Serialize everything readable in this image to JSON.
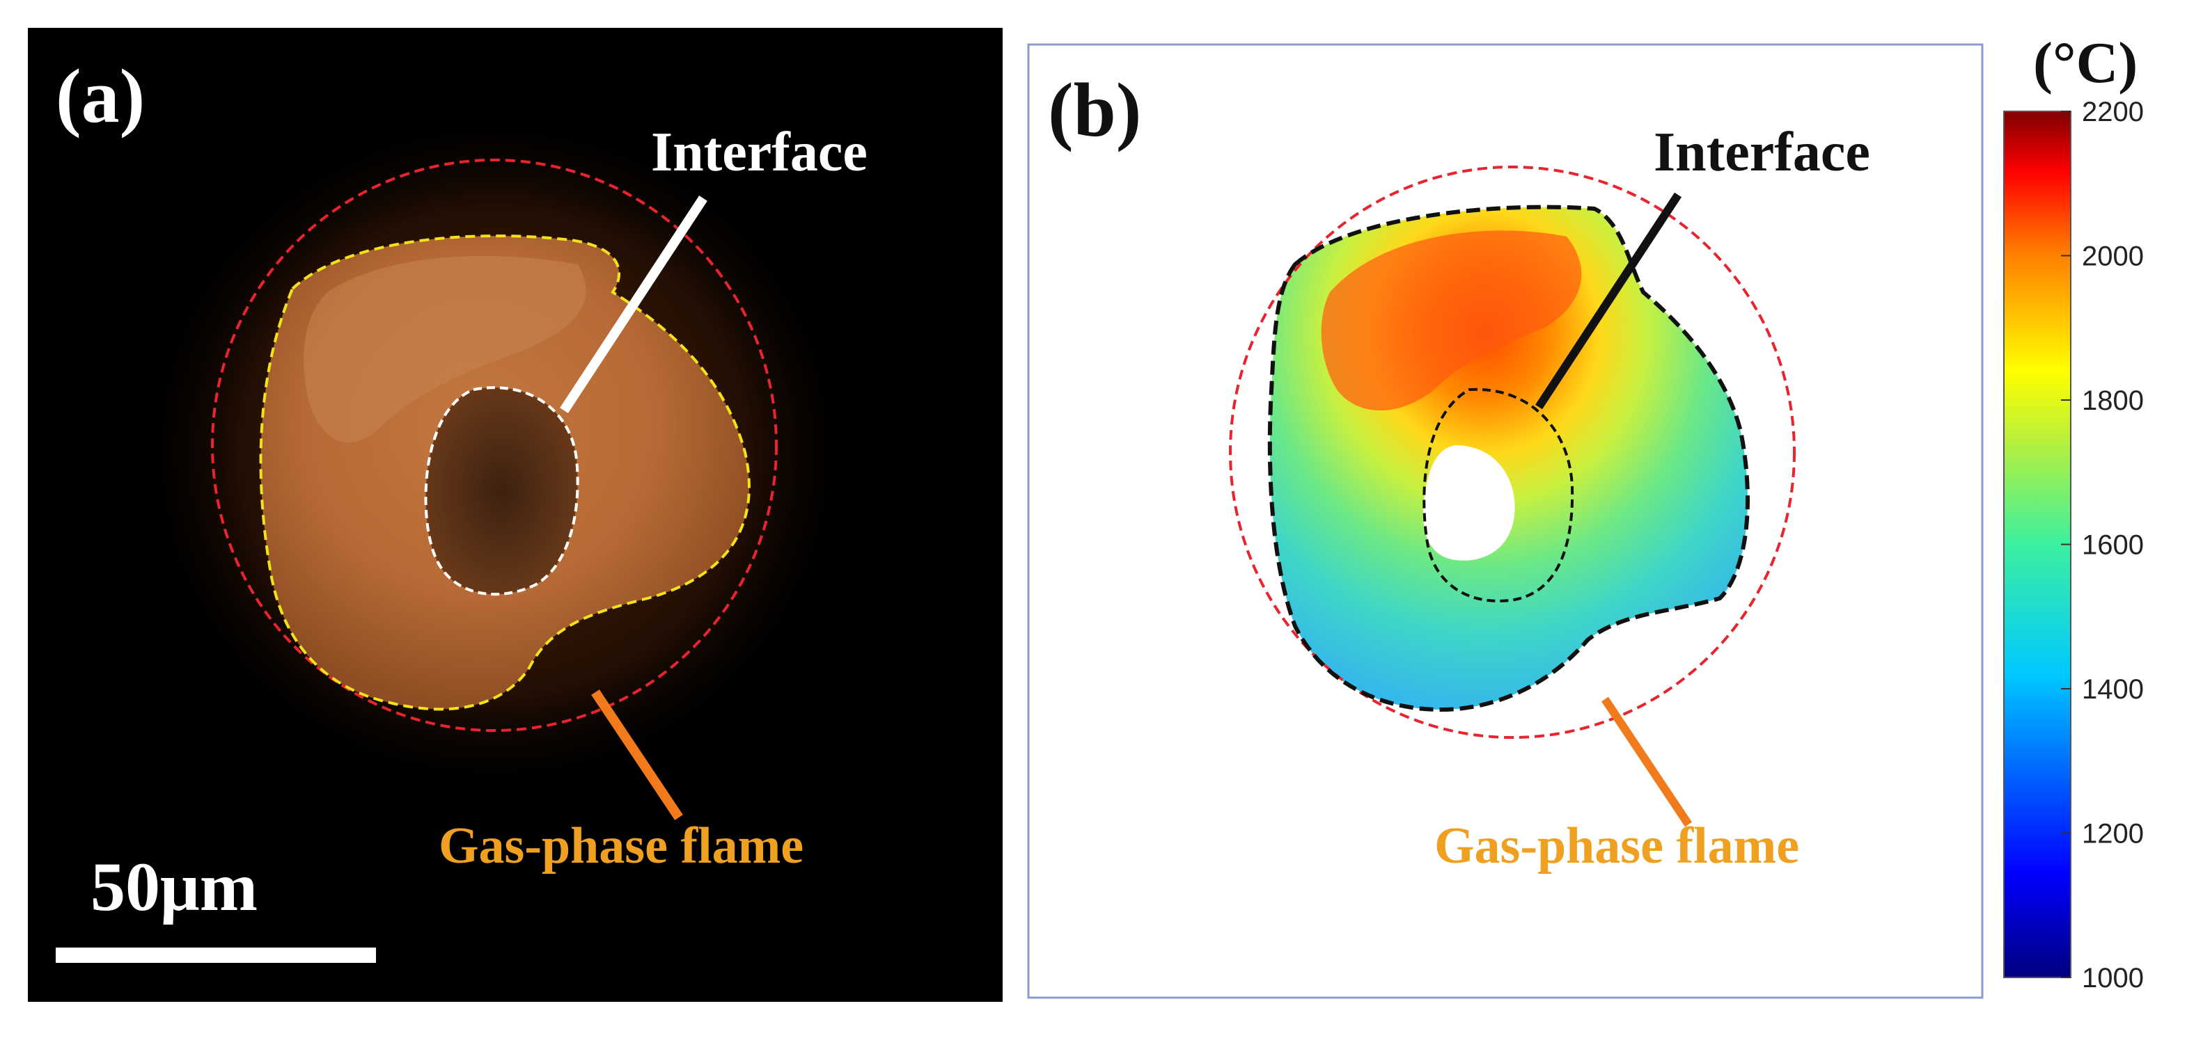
{
  "panel_a": {
    "label": "(a)",
    "interface_label": "Interface",
    "flame_label": "Gas-phase flame",
    "scale_bar_label": "50μm"
  },
  "panel_b": {
    "label": "(b)",
    "interface_label": "Interface",
    "flame_label": "Gas-phase flame"
  },
  "colorbar": {
    "unit": "(°C)",
    "ticks": [
      "2200",
      "2000",
      "1800",
      "1600",
      "1400",
      "1200",
      "1000"
    ],
    "min": 1000,
    "max": 2200
  },
  "colors": {
    "flame_outline": "#e8242e",
    "particle_outline_a": "#f2e21a",
    "interface_outline_a": "#ffffff",
    "pointer_flame": "#f07a1c",
    "label_flame": "#f0a020"
  }
}
